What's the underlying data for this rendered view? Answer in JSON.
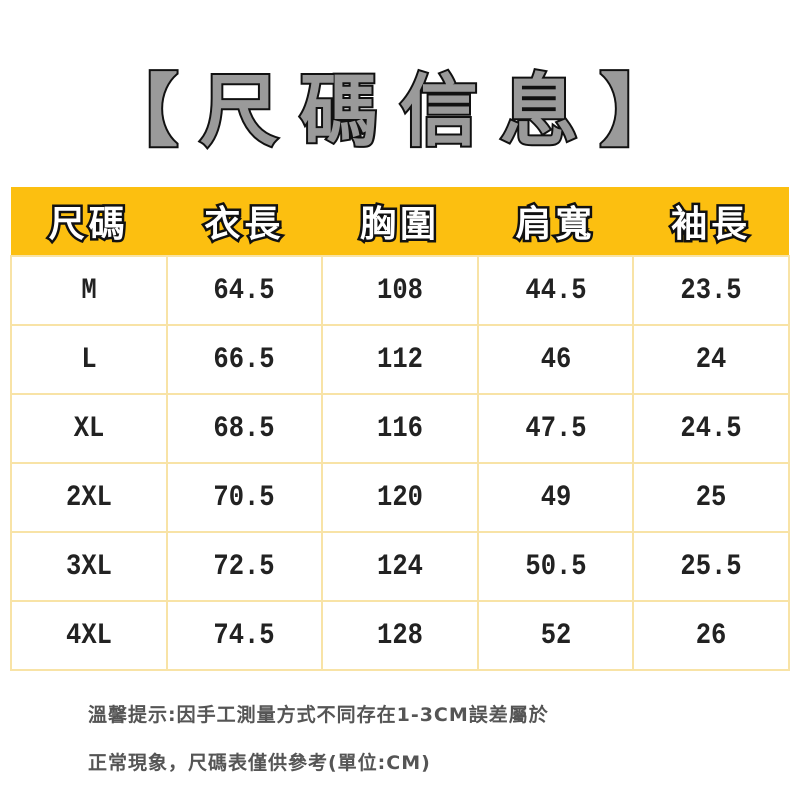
{
  "title": "【尺碼信息】",
  "colors": {
    "header_bg": "#fcbf10",
    "border": "#f8e3a6",
    "title_fill": "#9a9a9a"
  },
  "table": {
    "headers": [
      "尺碼",
      "衣長",
      "胸圍",
      "肩寬",
      "袖長"
    ],
    "rows": [
      [
        "M",
        "64.5",
        "108",
        "44.5",
        "23.5"
      ],
      [
        "L",
        "66.5",
        "112",
        "46",
        "24"
      ],
      [
        "XL",
        "68.5",
        "116",
        "47.5",
        "24.5"
      ],
      [
        "2XL",
        "70.5",
        "120",
        "49",
        "25"
      ],
      [
        "3XL",
        "72.5",
        "124",
        "50.5",
        "25.5"
      ],
      [
        "4XL",
        "74.5",
        "128",
        "52",
        "26"
      ]
    ]
  },
  "notes": [
    "溫馨提示:因手工測量方式不同存在1-3CM誤差屬於",
    "正常現象，尺碼表僅供參考(單位:CM)"
  ]
}
